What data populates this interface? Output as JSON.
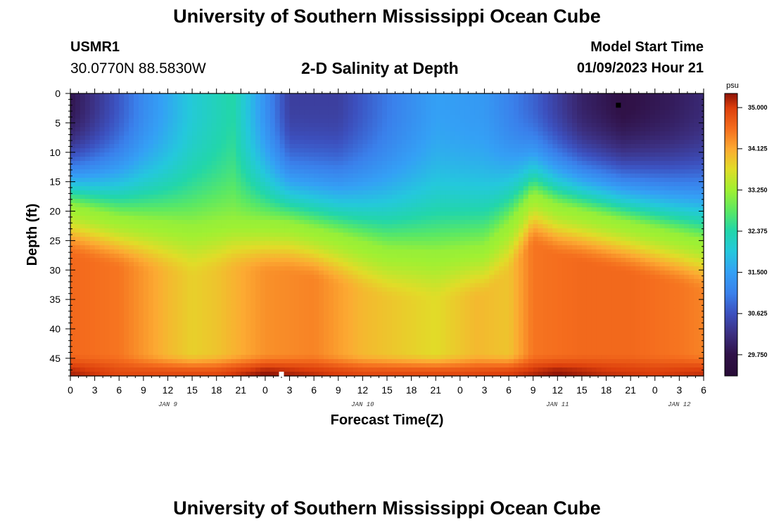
{
  "header": {
    "title": "University of Southern Mississippi Ocean Cube",
    "station": "USMR1",
    "coords": "30.0770N  88.5830W",
    "subtitle": "2-D Salinity at Depth",
    "model_start_label": "Model Start Time",
    "model_start_value": "01/09/2023 Hour 21"
  },
  "footer": {
    "title": "University of Southern Mississippi Ocean Cube"
  },
  "chart_data": {
    "type": "heatmap",
    "title": "2-D Salinity at Depth",
    "xlabel": "Forecast Time(Z)",
    "ylabel": "Depth (ft)",
    "x_range_hours": [
      0,
      78
    ],
    "y_range_ft": [
      0,
      48
    ],
    "x_tick_labels": [
      "0",
      "3",
      "6",
      "9",
      "12",
      "15",
      "18",
      "21",
      "0",
      "3",
      "6",
      "9",
      "12",
      "15",
      "18",
      "21",
      "0",
      "3",
      "6",
      "9",
      "12",
      "15",
      "18",
      "21",
      "0",
      "3",
      "6"
    ],
    "y_ticks": [
      0,
      5,
      10,
      15,
      20,
      25,
      30,
      35,
      40,
      45
    ],
    "day_labels": [
      {
        "label": "JAN 9",
        "hour": 12
      },
      {
        "label": "JAN 10",
        "hour": 36
      },
      {
        "label": "JAN 11",
        "hour": 60
      },
      {
        "label": "JAN 12",
        "hour": 75
      }
    ],
    "colorbar": {
      "unit": "psu",
      "range": [
        29.3,
        35.3
      ],
      "ticks": [
        "35.000",
        "34.125",
        "33.250",
        "32.375",
        "31.500",
        "30.625",
        "29.750"
      ]
    },
    "markers": [
      {
        "hour": 67.5,
        "depth_ft": 2,
        "color": "black"
      },
      {
        "hour": 26,
        "depth_ft": 47.7,
        "color": "white"
      }
    ],
    "interface_depth_ft": [
      [
        0,
        19
      ],
      [
        6,
        21
      ],
      [
        12,
        22
      ],
      [
        15,
        22.5
      ],
      [
        20,
        21.5
      ],
      [
        27,
        22
      ],
      [
        33,
        24
      ],
      [
        39,
        26.5
      ],
      [
        45,
        27
      ],
      [
        51,
        26
      ],
      [
        54,
        22
      ],
      [
        57,
        17
      ],
      [
        60,
        19
      ],
      [
        66,
        21
      ],
      [
        72,
        23
      ],
      [
        78,
        25
      ]
    ],
    "surface_salinity_psu": [
      [
        0,
        29.8
      ],
      [
        6,
        30.7
      ],
      [
        9,
        31.2
      ],
      [
        15,
        32.0
      ],
      [
        20,
        32.4
      ],
      [
        24,
        31.3
      ],
      [
        27,
        30.4
      ],
      [
        33,
        30.4
      ],
      [
        39,
        31.0
      ],
      [
        45,
        31.5
      ],
      [
        51,
        31.4
      ],
      [
        57,
        30.8
      ],
      [
        63,
        30.0
      ],
      [
        68,
        29.7
      ],
      [
        74,
        29.9
      ],
      [
        78,
        30.1
      ]
    ],
    "mid_salinity_psu": [
      [
        0,
        34.6
      ],
      [
        6,
        34.5
      ],
      [
        12,
        34.0
      ],
      [
        15,
        33.8
      ],
      [
        18,
        33.9
      ],
      [
        24,
        34.3
      ],
      [
        30,
        34.4
      ],
      [
        36,
        34.0
      ],
      [
        42,
        33.8
      ],
      [
        45,
        33.7
      ],
      [
        50,
        34.0
      ],
      [
        54,
        33.9
      ],
      [
        57,
        34.5
      ],
      [
        63,
        34.6
      ],
      [
        69,
        34.6
      ],
      [
        75,
        34.5
      ],
      [
        78,
        34.4
      ]
    ],
    "bottom_salinity_psu": [
      [
        0,
        35.2
      ],
      [
        6,
        34.9
      ],
      [
        12,
        34.9
      ],
      [
        18,
        34.9
      ],
      [
        24,
        35.3
      ],
      [
        30,
        35.1
      ],
      [
        36,
        34.9
      ],
      [
        42,
        34.9
      ],
      [
        48,
        34.9
      ],
      [
        54,
        35.0
      ],
      [
        60,
        35.3
      ],
      [
        66,
        35.1
      ],
      [
        72,
        35.0
      ],
      [
        78,
        35.1
      ]
    ]
  }
}
